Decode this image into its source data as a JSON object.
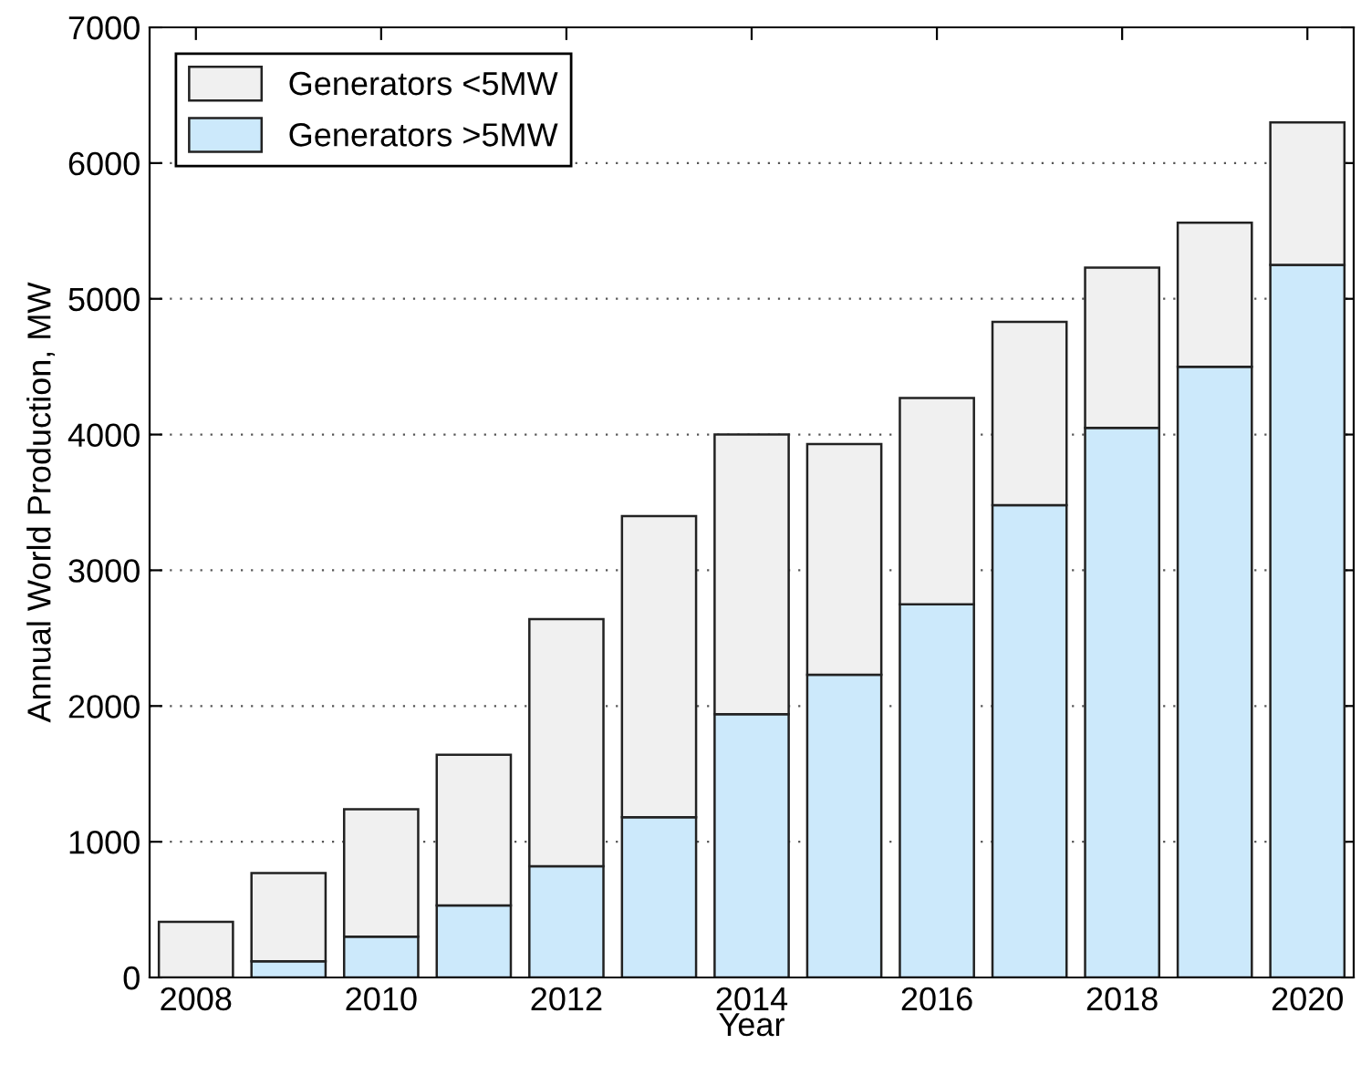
{
  "chart_data": {
    "type": "bar",
    "stacked": true,
    "xlabel": "Year",
    "ylabel": "Annual World Production, MW",
    "x": [
      2008,
      2009,
      2010,
      2011,
      2012,
      2013,
      2014,
      2015,
      2016,
      2017,
      2018,
      2019,
      2020
    ],
    "series": [
      {
        "name": "Generators >5MW",
        "color": "#cce9fb",
        "values": [
          0,
          120,
          300,
          530,
          820,
          1180,
          1940,
          2230,
          2750,
          3480,
          4050,
          4500,
          5250
        ]
      },
      {
        "name": "Generators <5MW",
        "color": "#f0f0f0",
        "values": [
          410,
          650,
          940,
          1110,
          1820,
          2220,
          2060,
          1700,
          1520,
          1350,
          1180,
          1060,
          1050
        ]
      }
    ],
    "xlim": [
      2007.5,
      2020.5
    ],
    "xticks": [
      2008,
      2010,
      2012,
      2014,
      2016,
      2018,
      2020
    ],
    "ylim": [
      0,
      7000
    ],
    "yticks": [
      0,
      1000,
      2000,
      3000,
      4000,
      5000,
      6000,
      7000
    ],
    "grid": "y",
    "legend": "top left"
  }
}
